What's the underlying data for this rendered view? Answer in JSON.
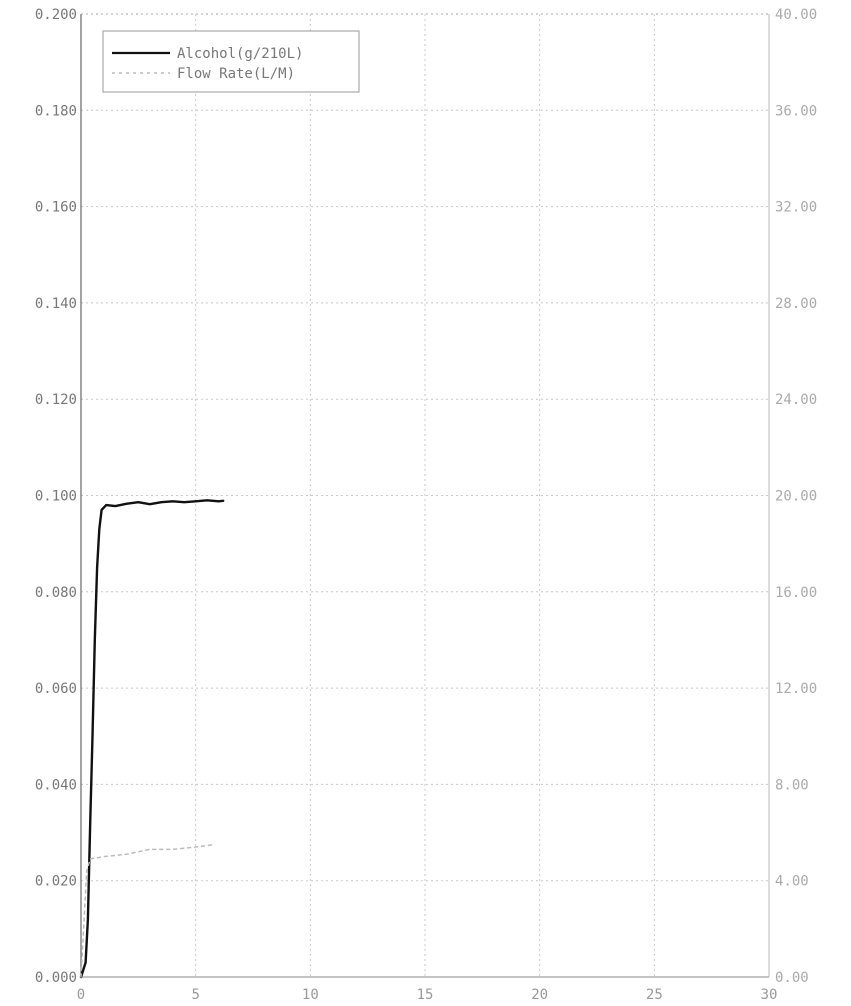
{
  "chart_data": {
    "type": "line",
    "title": "",
    "xlabel": "",
    "ylabel_left": "",
    "ylabel_right": "",
    "xlim": [
      0,
      30
    ],
    "ylim_left": [
      0,
      0.2
    ],
    "ylim_right": [
      0,
      40
    ],
    "grid": true,
    "legend_position": "top-left",
    "x_ticks": [
      "0",
      "5",
      "10",
      "15",
      "20",
      "25",
      "30"
    ],
    "left_ticks": [
      "0.000",
      "0.020",
      "0.040",
      "0.060",
      "0.080",
      "0.100",
      "0.120",
      "0.140",
      "0.160",
      "0.180",
      "0.200"
    ],
    "right_ticks": [
      "0.00",
      "4.00",
      "8.00",
      "12.00",
      "16.00",
      "20.00",
      "24.00",
      "28.00",
      "32.00",
      "36.00",
      "40.00"
    ],
    "series": [
      {
        "name": "Alcohol(g/210L)",
        "axis": "left",
        "style": "solid",
        "color": "#111111",
        "points": [
          [
            0,
            0.0
          ],
          [
            0.2,
            0.003
          ],
          [
            0.3,
            0.012
          ],
          [
            0.4,
            0.032
          ],
          [
            0.5,
            0.05
          ],
          [
            0.6,
            0.07
          ],
          [
            0.7,
            0.085
          ],
          [
            0.8,
            0.093
          ],
          [
            0.9,
            0.097
          ],
          [
            1.1,
            0.098
          ],
          [
            1.5,
            0.0978
          ],
          [
            2.0,
            0.0983
          ],
          [
            2.5,
            0.0986
          ],
          [
            3.0,
            0.0982
          ],
          [
            3.5,
            0.0986
          ],
          [
            4.0,
            0.0988
          ],
          [
            4.5,
            0.0986
          ],
          [
            5.0,
            0.0988
          ],
          [
            5.5,
            0.099
          ],
          [
            6.0,
            0.0988
          ],
          [
            6.2,
            0.0989
          ]
        ]
      },
      {
        "name": "Flow Rate(L/M)",
        "axis": "right",
        "style": "dashed",
        "color": "#bbbbbb",
        "points": [
          [
            0,
            0.0
          ],
          [
            0.25,
            4.4
          ],
          [
            0.4,
            4.9
          ],
          [
            1.0,
            5.0
          ],
          [
            2.0,
            5.1
          ],
          [
            3.0,
            5.3
          ],
          [
            4.0,
            5.3
          ],
          [
            5.0,
            5.4
          ],
          [
            5.8,
            5.5
          ]
        ]
      }
    ]
  }
}
